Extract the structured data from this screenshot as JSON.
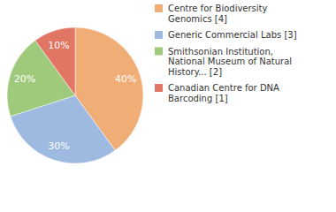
{
  "chart_data": {
    "type": "pie",
    "categories": [
      "Centre for Biodiversity Genomics [4]",
      "Generic Commercial Labs [3]",
      "Smithsonian Institution, National Museum of Natural History... [2]",
      "Canadian Centre for DNA Barcoding [1]"
    ],
    "values": [
      40,
      30,
      20,
      10
    ],
    "value_labels": [
      "40%",
      "30%",
      "20%",
      "10%"
    ],
    "colors": [
      "#f0ad76",
      "#9ebae0",
      "#9fc97b",
      "#e07663"
    ],
    "data_labels": true,
    "legend": "upper right"
  }
}
